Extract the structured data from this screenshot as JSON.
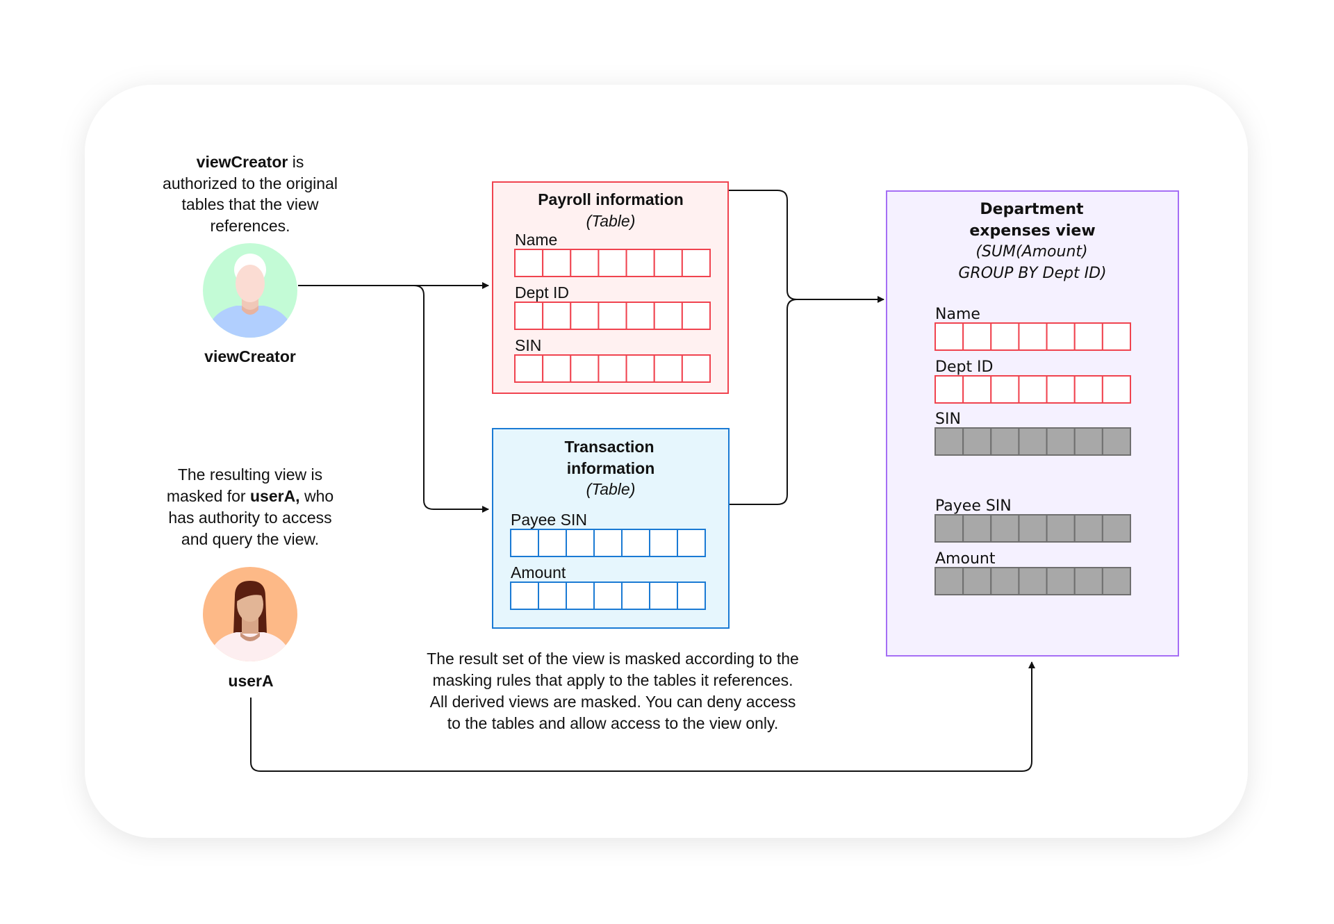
{
  "colors": {
    "payroll_border": "#f0434f",
    "payroll_fill": "#fff1f1",
    "transaction_border": "#1a7ad4",
    "transaction_fill": "#e6f6fd",
    "view_border": "#a56ef5",
    "view_fill": "#f5f1ff",
    "masked_cell": "#a8a8a8",
    "viewcreator_avatar_bg": "#c3fbd6",
    "usera_avatar_bg": "#fdb987"
  },
  "viewCreator": {
    "desc_bold": "viewCreator",
    "desc_line1_rest": " is",
    "desc_line2": "authorized to the original",
    "desc_line3": "tables that the view",
    "desc_line4": "references.",
    "label": "viewCreator",
    "icon": "person-avatar-icon"
  },
  "userA": {
    "desc_line1": "The resulting view is",
    "desc_line2_pre": "masked for ",
    "desc_line2_bold": "userA,",
    "desc_line2_post": " who",
    "desc_line3": "has authority to access",
    "desc_line4": "and query the view.",
    "label": "userA",
    "icon": "person-avatar-icon"
  },
  "payroll": {
    "title": "Payroll information",
    "subtitle": "(Table)",
    "fields": [
      {
        "label": "Name",
        "masked": false
      },
      {
        "label": "Dept ID",
        "masked": false
      },
      {
        "label": "SIN",
        "masked": false
      }
    ]
  },
  "transaction": {
    "title_line1": "Transaction",
    "title_line2": "information",
    "subtitle": "(Table)",
    "fields": [
      {
        "label": "Payee SIN",
        "masked": false
      },
      {
        "label": "Amount",
        "masked": false
      }
    ]
  },
  "view": {
    "title_line1": "Department",
    "title_line2": "expenses view",
    "subtitle_line1": "(SUM(Amount)",
    "subtitle_line2": "GROUP BY Dept ID)",
    "fields": [
      {
        "label": "Name",
        "masked": false
      },
      {
        "label": "Dept ID",
        "masked": false
      },
      {
        "label": "SIN",
        "masked": true
      },
      {
        "label": "Payee SIN",
        "masked": true
      },
      {
        "label": "Amount",
        "masked": true
      }
    ]
  },
  "note": {
    "line1": "The result set of the view is masked according to the",
    "line2": "masking rules that apply to the tables it references.",
    "line3": "All derived views are masked. You can deny access",
    "line4": "to the tables and allow access to the view only."
  }
}
